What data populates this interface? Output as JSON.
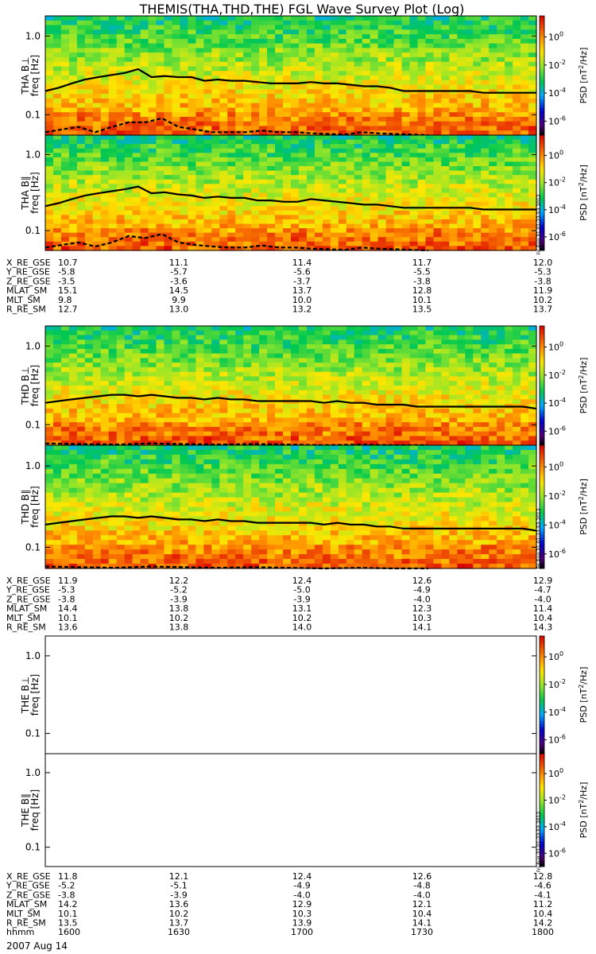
{
  "title": "THEMIS(THA,THD,THE) FGL Wave Survey Plot (Log)",
  "timestamp_label": "Fri Aug 31 01:23:53 2012",
  "colorbar": {
    "label_prefix": "PSD [nT",
    "label_sup": "2",
    "label_suffix": "/Hz]",
    "ticks": [
      {
        "base": "10",
        "exp": "0",
        "value": 0
      },
      {
        "base": "10",
        "exp": "-2",
        "value": -2
      },
      {
        "base": "10",
        "exp": "-4",
        "value": -4
      },
      {
        "base": "10",
        "exp": "-6",
        "value": -6
      }
    ],
    "range": [
      -7,
      1.5
    ]
  },
  "chart_data": [
    {
      "type": "heatmap",
      "probe_label": "THA B⊥",
      "ylabel": "freq [Hz]",
      "yticks": [
        "1.0",
        "0.1"
      ],
      "yscale": "log",
      "ylim": [
        0.055,
        1.8
      ],
      "xlim": [
        "1600",
        "1800"
      ],
      "has_data": true,
      "fce_curve": [
        0.2,
        0.22,
        0.25,
        0.28,
        0.3,
        0.32,
        0.34,
        0.38,
        0.3,
        0.31,
        0.3,
        0.3,
        0.27,
        0.28,
        0.27,
        0.27,
        0.26,
        0.25,
        0.25,
        0.25,
        0.26,
        0.25,
        0.25,
        0.24,
        0.23,
        0.23,
        0.22,
        0.2,
        0.2,
        0.2,
        0.2,
        0.2,
        0.2,
        0.19,
        0.19,
        0.19,
        0.19,
        0.19
      ],
      "fhalf_curve": [
        0.06,
        0.065,
        0.07,
        0.06,
        0.07,
        0.08,
        0.08,
        0.09,
        0.07,
        0.065,
        0.06,
        0.06,
        0.06,
        0.063,
        0.06,
        0.06,
        0.058,
        0.057,
        0.056,
        0.06,
        0.058,
        0.057,
        0.056,
        0.055
      ]
    },
    {
      "type": "heatmap",
      "probe_label": "THA B∥",
      "ylabel": "freq [Hz]",
      "yticks": [
        "1.0",
        "0.1"
      ],
      "yscale": "log",
      "ylim": [
        0.055,
        1.8
      ],
      "xlim": [
        "1600",
        "1800"
      ],
      "has_data": true,
      "fce_curve": [
        0.21,
        0.23,
        0.26,
        0.29,
        0.31,
        0.33,
        0.35,
        0.38,
        0.31,
        0.32,
        0.3,
        0.29,
        0.27,
        0.28,
        0.27,
        0.27,
        0.25,
        0.25,
        0.24,
        0.24,
        0.26,
        0.25,
        0.24,
        0.23,
        0.22,
        0.22,
        0.21,
        0.2,
        0.2,
        0.2,
        0.2,
        0.2,
        0.2,
        0.19,
        0.19,
        0.19,
        0.19,
        0.19
      ],
      "fhalf_curve": [
        0.06,
        0.065,
        0.07,
        0.062,
        0.07,
        0.085,
        0.08,
        0.09,
        0.07,
        0.065,
        0.062,
        0.06,
        0.06,
        0.064,
        0.06,
        0.06,
        0.058,
        0.057,
        0.056,
        0.06,
        0.058,
        0.057,
        0.056,
        0.055
      ]
    },
    {
      "type": "heatmap",
      "probe_label": "THD B⊥",
      "ylabel": "freq [Hz]",
      "yticks": [
        "1.0",
        "0.1"
      ],
      "yscale": "log",
      "ylim": [
        0.055,
        1.8
      ],
      "xlim": [
        "1600",
        "1800"
      ],
      "has_data": true,
      "fce_curve": [
        0.19,
        0.2,
        0.21,
        0.22,
        0.23,
        0.24,
        0.24,
        0.23,
        0.24,
        0.23,
        0.22,
        0.22,
        0.21,
        0.22,
        0.21,
        0.21,
        0.2,
        0.2,
        0.2,
        0.2,
        0.2,
        0.19,
        0.2,
        0.19,
        0.19,
        0.18,
        0.18,
        0.18,
        0.17,
        0.17,
        0.17,
        0.17,
        0.17,
        0.17,
        0.17,
        0.17,
        0.17,
        0.16
      ],
      "fhalf_curve": [
        0.058,
        0.057,
        0.056,
        0.058,
        0.057,
        0.056,
        0.057,
        0.056,
        0.055,
        0.056,
        0.055,
        0.055
      ]
    },
    {
      "type": "heatmap",
      "probe_label": "THD B∥",
      "ylabel": "freq [Hz]",
      "yticks": [
        "1.0",
        "0.1"
      ],
      "yscale": "log",
      "ylim": [
        0.055,
        1.8
      ],
      "xlim": [
        "1600",
        "1800"
      ],
      "has_data": true,
      "fce_curve": [
        0.19,
        0.2,
        0.21,
        0.22,
        0.23,
        0.24,
        0.24,
        0.23,
        0.24,
        0.23,
        0.22,
        0.22,
        0.21,
        0.22,
        0.21,
        0.21,
        0.2,
        0.2,
        0.2,
        0.2,
        0.2,
        0.19,
        0.2,
        0.19,
        0.19,
        0.18,
        0.18,
        0.17,
        0.17,
        0.17,
        0.17,
        0.17,
        0.17,
        0.17,
        0.17,
        0.17,
        0.17,
        0.16
      ],
      "fhalf_curve": [
        0.058,
        0.057,
        0.056,
        0.058,
        0.057,
        0.056,
        0.057,
        0.056,
        0.055,
        0.056,
        0.055,
        0.055
      ]
    },
    {
      "type": "heatmap",
      "probe_label": "THE B⊥",
      "ylabel": "freq [Hz]",
      "yticks": [
        "1.0",
        "0.1"
      ],
      "yscale": "log",
      "ylim": [
        0.055,
        1.8
      ],
      "xlim": [
        "1600",
        "1800"
      ],
      "has_data": false
    },
    {
      "type": "heatmap",
      "probe_label": "THE B∥",
      "ylabel": "freq [Hz]",
      "yticks": [
        "1.0",
        "0.1"
      ],
      "yscale": "log",
      "ylim": [
        0.055,
        1.8
      ],
      "xlim": [
        "1600",
        "1800"
      ],
      "has_data": false
    }
  ],
  "ephemeris_tables": [
    {
      "rows": [
        {
          "label": "X_RE_GSE",
          "values": [
            "10.7",
            "11.1",
            "11.4",
            "11.7",
            "12.0"
          ]
        },
        {
          "label": "Y_RE_GSE",
          "values": [
            "-5.8",
            "-5.7",
            "-5.6",
            "-5.5",
            "-5.3"
          ]
        },
        {
          "label": "Z_RE_GSE",
          "values": [
            "-3.5",
            "-3.6",
            "-3.7",
            "-3.8",
            "-3.8"
          ]
        },
        {
          "label": "MLAT_SM",
          "values": [
            "15.1",
            "14.5",
            "13.7",
            "12.8",
            "11.9"
          ]
        },
        {
          "label": "MLT_SM",
          "values": [
            "9.8",
            "9.9",
            "10.0",
            "10.1",
            "10.2"
          ]
        },
        {
          "label": "R_RE_SM",
          "values": [
            "12.7",
            "13.0",
            "13.2",
            "13.5",
            "13.7"
          ]
        }
      ]
    },
    {
      "rows": [
        {
          "label": "X_RE_GSE",
          "values": [
            "11.9",
            "12.2",
            "12.4",
            "12.6",
            "12.9"
          ]
        },
        {
          "label": "Y_RE_GSE",
          "values": [
            "-5.3",
            "-5.2",
            "-5.0",
            "-4.9",
            "-4.7"
          ]
        },
        {
          "label": "Z_RE_GSE",
          "values": [
            "-3.8",
            "-3.9",
            "-3.9",
            "-4.0",
            "-4.0"
          ]
        },
        {
          "label": "MLAT_SM",
          "values": [
            "14.4",
            "13.8",
            "13.1",
            "12.3",
            "11.4"
          ]
        },
        {
          "label": "MLT_SM",
          "values": [
            "10.1",
            "10.2",
            "10.2",
            "10.3",
            "10.4"
          ]
        },
        {
          "label": "R_RE_SM",
          "values": [
            "13.6",
            "13.8",
            "14.0",
            "14.1",
            "14.3"
          ]
        }
      ]
    },
    {
      "rows": [
        {
          "label": "X_RE_GSE",
          "values": [
            "11.8",
            "12.1",
            "12.4",
            "12.6",
            "12.8"
          ]
        },
        {
          "label": "Y_RE_GSE",
          "values": [
            "-5.2",
            "-5.1",
            "-4.9",
            "-4.8",
            "-4.6"
          ]
        },
        {
          "label": "Z_RE_GSE",
          "values": [
            "-3.8",
            "-3.9",
            "-4.0",
            "-4.0",
            "-4.1"
          ]
        },
        {
          "label": "MLAT_SM",
          "values": [
            "14.2",
            "13.6",
            "12.9",
            "12.1",
            "11.2"
          ]
        },
        {
          "label": "MLT_SM",
          "values": [
            "10.1",
            "10.2",
            "10.3",
            "10.4",
            "10.4"
          ]
        },
        {
          "label": "R_RE_SM",
          "values": [
            "13.5",
            "13.7",
            "13.9",
            "14.1",
            "14.2"
          ]
        },
        {
          "label": "hhmm",
          "values": [
            "1600",
            "1630",
            "1700",
            "1730",
            "1800"
          ]
        }
      ]
    }
  ],
  "date_label": "2007 Aug 14"
}
